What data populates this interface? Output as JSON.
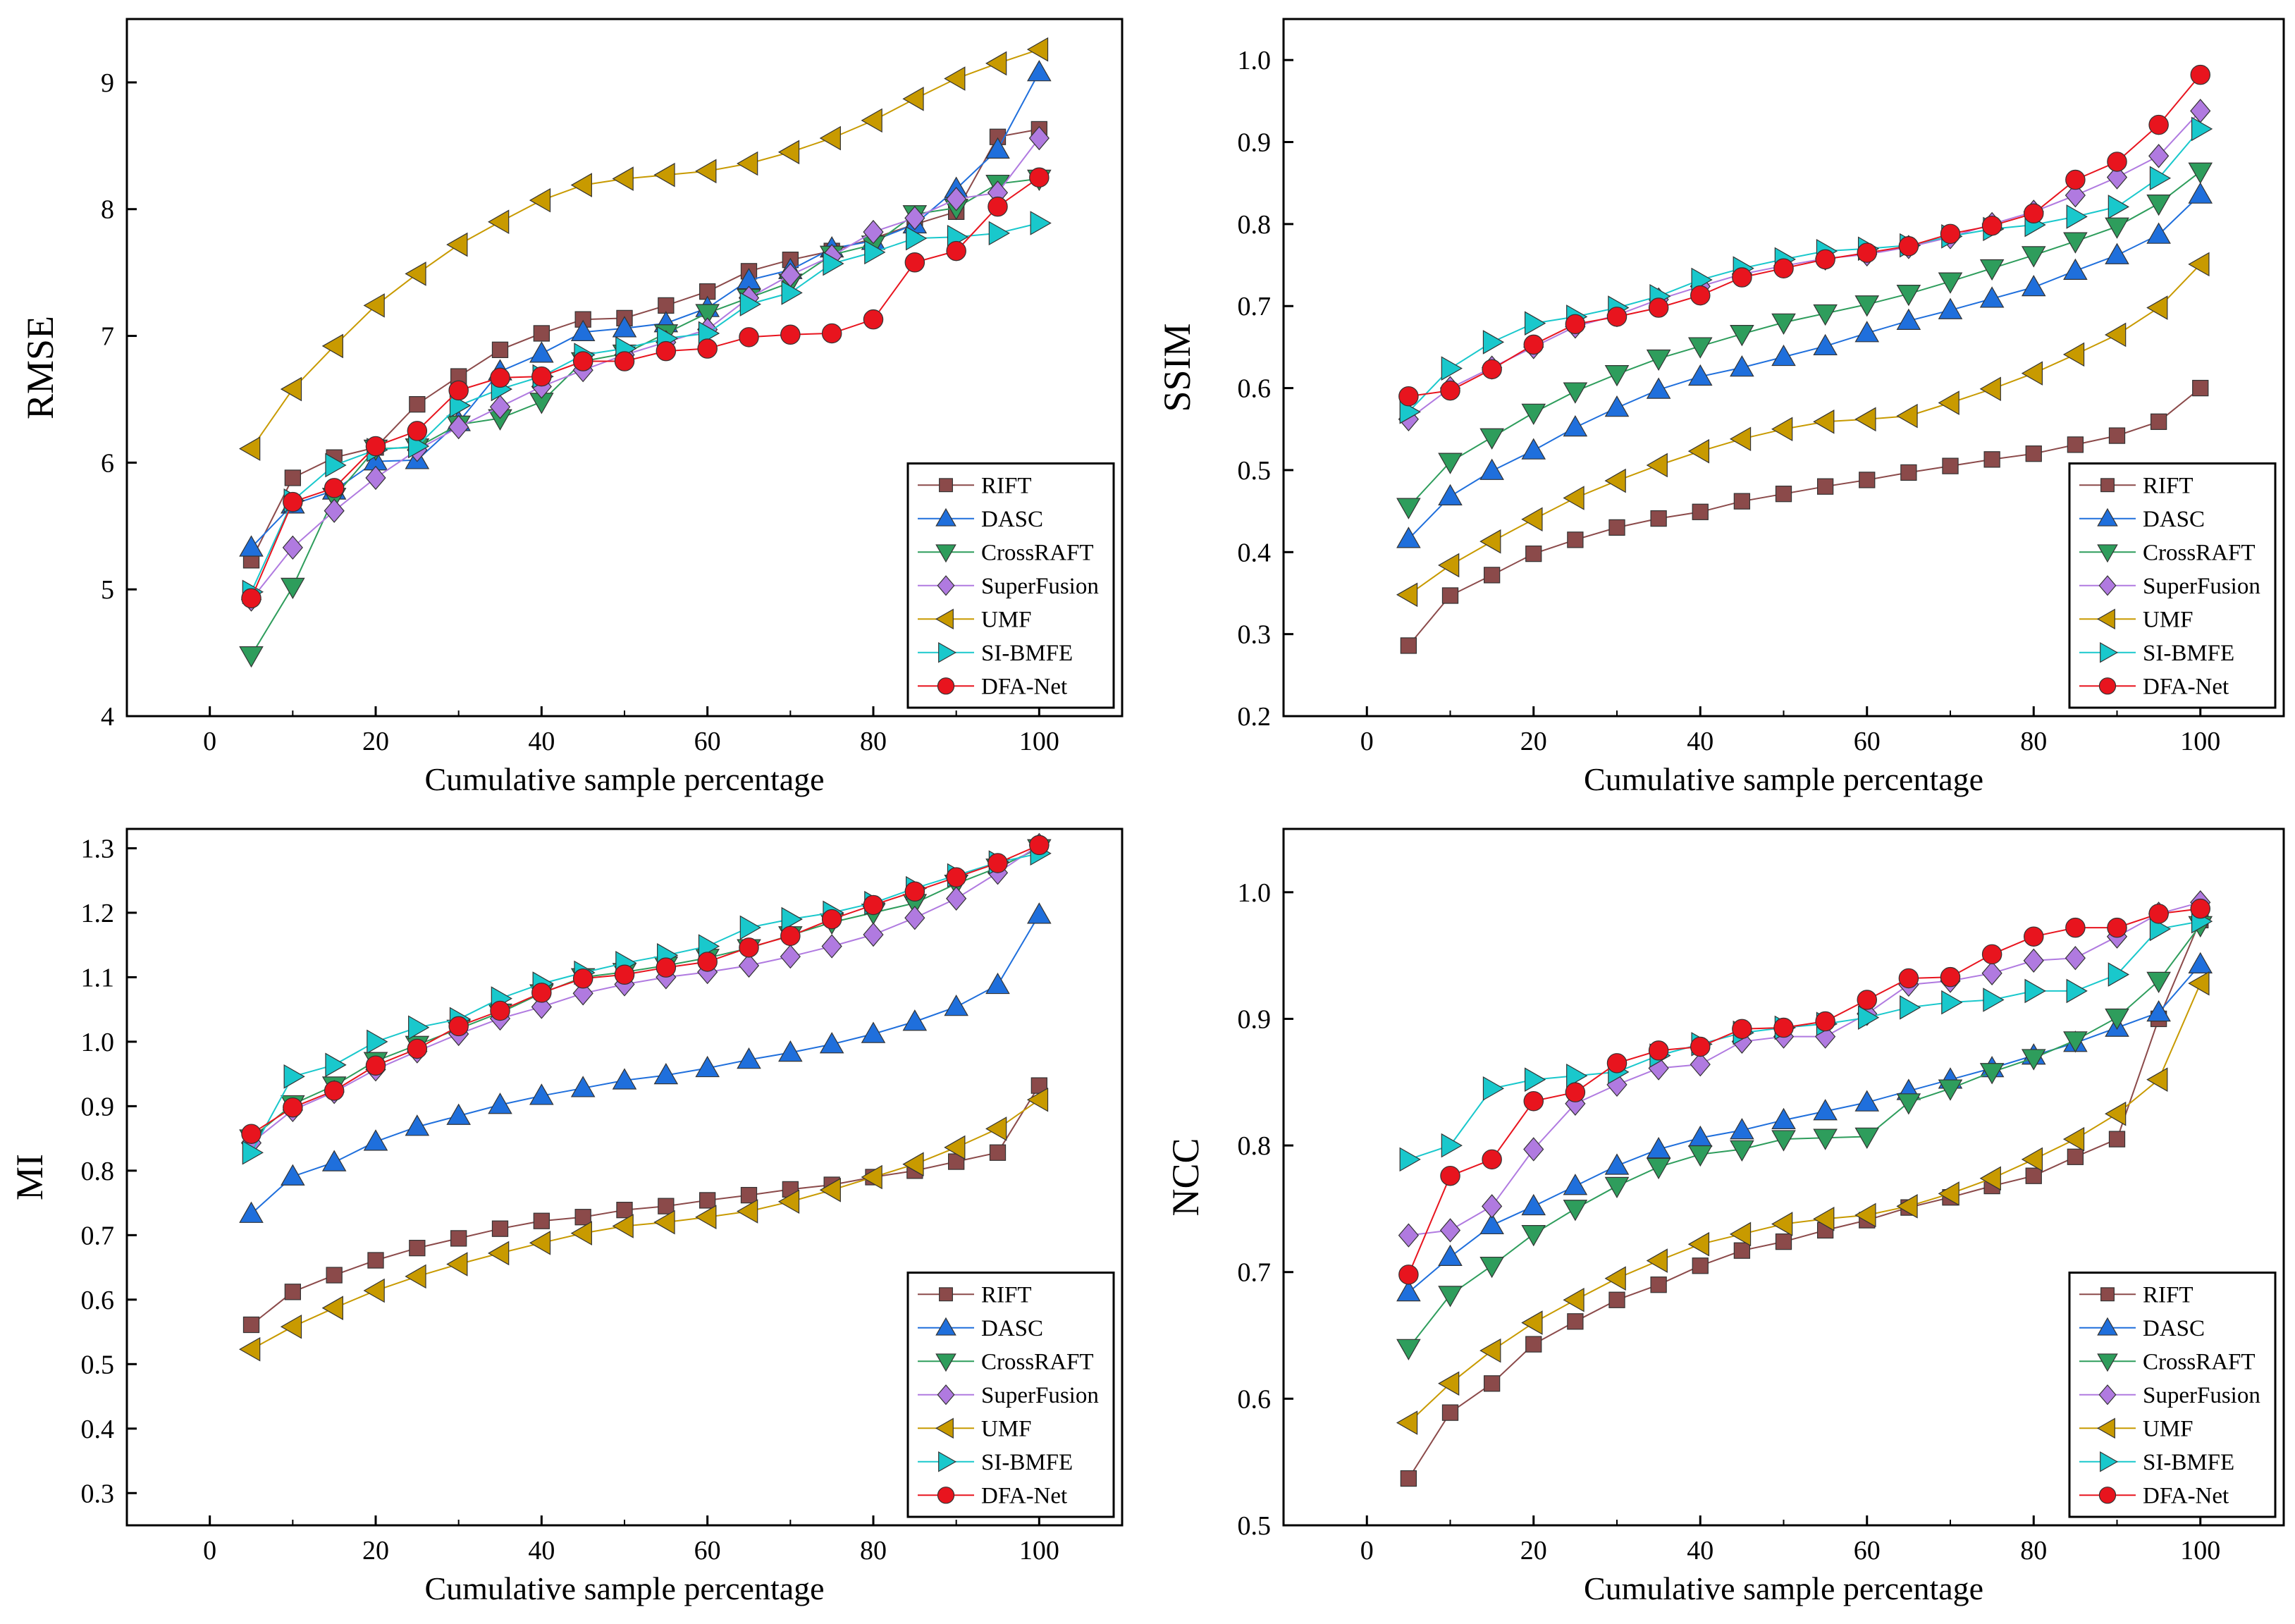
{
  "series_styles": [
    {
      "name": "RIFT",
      "color": "#8b4a4a",
      "marker": "square"
    },
    {
      "name": "DASC",
      "color": "#1f6fdc",
      "marker": "triangle-up"
    },
    {
      "name": "CrossRAFT",
      "color": "#2e9d5c",
      "marker": "triangle-down"
    },
    {
      "name": "SuperFusion",
      "color": "#b07ae0",
      "marker": "diamond"
    },
    {
      "name": "UMF",
      "color": "#c89a00",
      "marker": "triangle-left"
    },
    {
      "name": "SI-BMFE",
      "color": "#19c8cc",
      "marker": "triangle-right"
    },
    {
      "name": "DFA-Net",
      "color": "#e8141e",
      "marker": "circle"
    }
  ],
  "chart_data": [
    {
      "type": "line",
      "id": "rmse",
      "xlabel": "Cumulative sample percentage",
      "ylabel": "RMSE",
      "xlim": [
        -10,
        110
      ],
      "ylim": [
        4,
        9.5
      ],
      "xticks": [
        0,
        20,
        40,
        60,
        80,
        100
      ],
      "yticks": [
        4,
        5,
        6,
        7,
        8,
        9
      ],
      "ytick_labels": [
        "4",
        "5",
        "6",
        "7",
        "8",
        "9"
      ],
      "legend": "bottom-right",
      "x": [
        5,
        10,
        15,
        20,
        25,
        30,
        35,
        40,
        45,
        50,
        55,
        60,
        65,
        70,
        75,
        80,
        85,
        90,
        95,
        100
      ],
      "series": [
        {
          "name": "RIFT",
          "values": [
            5.23,
            5.88,
            6.04,
            6.12,
            6.46,
            6.68,
            6.89,
            7.02,
            7.13,
            7.14,
            7.24,
            7.35,
            7.51,
            7.6,
            7.67,
            7.77,
            7.88,
            7.98,
            8.57,
            8.63
          ]
        },
        {
          "name": "DASC",
          "values": [
            5.33,
            5.67,
            5.78,
            6.01,
            6.02,
            6.32,
            6.72,
            6.86,
            7.03,
            7.06,
            7.1,
            7.22,
            7.44,
            7.52,
            7.69,
            7.75,
            7.88,
            8.16,
            8.47,
            9.08
          ]
        },
        {
          "name": "CrossRAFT",
          "values": [
            4.48,
            5.02,
            5.73,
            6.11,
            6.12,
            6.3,
            6.35,
            6.48,
            6.8,
            6.86,
            7.02,
            7.18,
            7.3,
            7.42,
            7.64,
            7.72,
            7.96,
            8.01,
            8.2,
            8.24
          ]
        },
        {
          "name": "SuperFusion",
          "values": [
            4.92,
            5.33,
            5.62,
            5.88,
            6.1,
            6.28,
            6.44,
            6.6,
            6.73,
            6.85,
            6.95,
            7.05,
            7.3,
            7.48,
            7.63,
            7.82,
            7.93,
            8.08,
            8.13,
            8.56
          ]
        },
        {
          "name": "UMF",
          "values": [
            6.11,
            6.58,
            6.92,
            7.24,
            7.49,
            7.72,
            7.9,
            8.07,
            8.19,
            8.24,
            8.27,
            8.3,
            8.36,
            8.45,
            8.56,
            8.7,
            8.87,
            9.03,
            9.15,
            9.26
          ]
        },
        {
          "name": "SI-BMFE",
          "values": [
            4.98,
            5.7,
            5.98,
            6.1,
            6.13,
            6.45,
            6.58,
            6.68,
            6.85,
            6.9,
            6.98,
            7.02,
            7.25,
            7.34,
            7.57,
            7.66,
            7.77,
            7.78,
            7.81,
            7.89
          ]
        },
        {
          "name": "DFA-Net",
          "values": [
            4.93,
            5.69,
            5.8,
            6.13,
            6.25,
            6.57,
            6.67,
            6.68,
            6.8,
            6.8,
            6.88,
            6.9,
            6.99,
            7.01,
            7.02,
            7.13,
            7.58,
            7.67,
            8.02,
            8.25
          ]
        }
      ]
    },
    {
      "type": "line",
      "id": "ssim",
      "xlabel": "Cumulative sample percentage",
      "ylabel": "SSIM",
      "xlim": [
        -10,
        110
      ],
      "ylim": [
        0.2,
        1.05
      ],
      "xticks": [
        0,
        20,
        40,
        60,
        80,
        100
      ],
      "yticks": [
        0.2,
        0.3,
        0.4,
        0.5,
        0.6,
        0.7,
        0.8,
        0.9,
        1.0
      ],
      "ytick_labels": [
        "0.2",
        "0.3",
        "0.4",
        "0.5",
        "0.6",
        "0.7",
        "0.8",
        "0.9",
        "1.0"
      ],
      "legend": "bottom-right",
      "x": [
        5,
        10,
        15,
        20,
        25,
        30,
        35,
        40,
        45,
        50,
        55,
        60,
        65,
        70,
        75,
        80,
        85,
        90,
        95,
        100
      ],
      "series": [
        {
          "name": "RIFT",
          "values": [
            0.286,
            0.347,
            0.372,
            0.398,
            0.415,
            0.43,
            0.441,
            0.449,
            0.462,
            0.471,
            0.48,
            0.488,
            0.497,
            0.505,
            0.513,
            0.52,
            0.531,
            0.542,
            0.559,
            0.6
          ]
        },
        {
          "name": "DASC",
          "values": [
            0.416,
            0.468,
            0.499,
            0.524,
            0.552,
            0.576,
            0.598,
            0.614,
            0.625,
            0.638,
            0.651,
            0.667,
            0.682,
            0.695,
            0.709,
            0.723,
            0.743,
            0.762,
            0.787,
            0.836
          ]
        },
        {
          "name": "CrossRAFT",
          "values": [
            0.455,
            0.51,
            0.54,
            0.57,
            0.596,
            0.617,
            0.636,
            0.651,
            0.666,
            0.68,
            0.691,
            0.702,
            0.715,
            0.73,
            0.746,
            0.762,
            0.779,
            0.797,
            0.825,
            0.864
          ]
        },
        {
          "name": "SuperFusion",
          "values": [
            0.562,
            0.6,
            0.625,
            0.65,
            0.675,
            0.689,
            0.708,
            0.724,
            0.739,
            0.749,
            0.758,
            0.763,
            0.772,
            0.784,
            0.8,
            0.815,
            0.835,
            0.857,
            0.883,
            0.938
          ]
        },
        {
          "name": "UMF",
          "values": [
            0.348,
            0.384,
            0.413,
            0.44,
            0.466,
            0.487,
            0.506,
            0.523,
            0.538,
            0.55,
            0.559,
            0.562,
            0.566,
            0.582,
            0.599,
            0.618,
            0.641,
            0.665,
            0.698,
            0.751
          ]
        },
        {
          "name": "SI-BMFE",
          "values": [
            0.571,
            0.624,
            0.656,
            0.679,
            0.687,
            0.698,
            0.712,
            0.732,
            0.746,
            0.757,
            0.767,
            0.77,
            0.774,
            0.785,
            0.794,
            0.799,
            0.809,
            0.821,
            0.856,
            0.916
          ]
        },
        {
          "name": "DFA-Net",
          "values": [
            0.59,
            0.597,
            0.623,
            0.653,
            0.678,
            0.687,
            0.698,
            0.713,
            0.735,
            0.746,
            0.757,
            0.765,
            0.773,
            0.788,
            0.798,
            0.813,
            0.854,
            0.876,
            0.921,
            0.982
          ]
        }
      ]
    },
    {
      "type": "line",
      "id": "mi",
      "xlabel": "Cumulative sample percentage",
      "ylabel": "MI",
      "xlim": [
        -10,
        110
      ],
      "ylim": [
        0.25,
        1.33
      ],
      "xticks": [
        0,
        20,
        40,
        60,
        80,
        100
      ],
      "yticks": [
        0.3,
        0.4,
        0.5,
        0.6,
        0.7,
        0.8,
        0.9,
        1.0,
        1.1,
        1.2,
        1.3
      ],
      "ytick_labels": [
        "0.3",
        "0.4",
        "0.5",
        "0.6",
        "0.7",
        "0.8",
        "0.9",
        "1.0",
        "1.1",
        "1.2",
        "1.3"
      ],
      "legend": "bottom-right",
      "x": [
        5,
        10,
        15,
        20,
        25,
        30,
        35,
        40,
        45,
        50,
        55,
        60,
        65,
        70,
        75,
        80,
        85,
        90,
        95,
        100
      ],
      "series": [
        {
          "name": "RIFT",
          "values": [
            0.561,
            0.612,
            0.638,
            0.661,
            0.68,
            0.695,
            0.71,
            0.722,
            0.728,
            0.739,
            0.745,
            0.754,
            0.762,
            0.771,
            0.778,
            0.79,
            0.8,
            0.814,
            0.828,
            0.932
          ]
        },
        {
          "name": "DASC",
          "values": [
            0.733,
            0.791,
            0.813,
            0.845,
            0.868,
            0.885,
            0.902,
            0.916,
            0.928,
            0.94,
            0.948,
            0.959,
            0.972,
            0.983,
            0.996,
            1.012,
            1.031,
            1.054,
            1.088,
            1.197
          ]
        },
        {
          "name": "CrossRAFT",
          "values": [
            0.85,
            0.903,
            0.932,
            0.97,
            0.995,
            1.02,
            1.045,
            1.075,
            1.1,
            1.108,
            1.118,
            1.13,
            1.145,
            1.165,
            1.185,
            1.2,
            1.215,
            1.245,
            1.27,
            1.3
          ]
        },
        {
          "name": "SuperFusion",
          "values": [
            0.843,
            0.894,
            0.922,
            0.957,
            0.985,
            1.012,
            1.036,
            1.054,
            1.075,
            1.089,
            1.1,
            1.108,
            1.118,
            1.132,
            1.148,
            1.166,
            1.192,
            1.222,
            1.262,
            1.305
          ]
        },
        {
          "name": "UMF",
          "values": [
            0.523,
            0.558,
            0.587,
            0.614,
            0.636,
            0.655,
            0.672,
            0.688,
            0.703,
            0.714,
            0.72,
            0.728,
            0.737,
            0.752,
            0.77,
            0.79,
            0.81,
            0.836,
            0.865,
            0.91
          ]
        },
        {
          "name": "SI-BMFE",
          "values": [
            0.828,
            0.946,
            0.964,
            1.0,
            1.022,
            1.035,
            1.067,
            1.09,
            1.107,
            1.122,
            1.134,
            1.148,
            1.177,
            1.19,
            1.2,
            1.215,
            1.238,
            1.258,
            1.278,
            1.292
          ]
        },
        {
          "name": "DFA-Net",
          "values": [
            0.857,
            0.898,
            0.924,
            0.963,
            0.989,
            1.024,
            1.048,
            1.076,
            1.098,
            1.104,
            1.115,
            1.124,
            1.146,
            1.164,
            1.19,
            1.212,
            1.233,
            1.255,
            1.277,
            1.305
          ]
        }
      ]
    },
    {
      "type": "line",
      "id": "ncc",
      "xlabel": "Cumulative sample percentage",
      "ylabel": "NCC",
      "xlim": [
        -10,
        110
      ],
      "ylim": [
        0.5,
        1.05
      ],
      "xticks": [
        0,
        20,
        40,
        60,
        80,
        100
      ],
      "yticks": [
        0.5,
        0.6,
        0.7,
        0.8,
        0.9,
        1.0
      ],
      "ytick_labels": [
        "0.5",
        "0.6",
        "0.7",
        "0.8",
        "0.9",
        "1.0"
      ],
      "legend": "bottom-right",
      "x": [
        5,
        10,
        15,
        20,
        25,
        30,
        35,
        40,
        45,
        50,
        55,
        60,
        65,
        70,
        75,
        80,
        85,
        90,
        95,
        100
      ],
      "series": [
        {
          "name": "RIFT",
          "values": [
            0.537,
            0.589,
            0.612,
            0.643,
            0.661,
            0.678,
            0.69,
            0.705,
            0.717,
            0.724,
            0.733,
            0.741,
            0.751,
            0.759,
            0.768,
            0.776,
            0.791,
            0.805,
            0.9,
            0.978
          ]
        },
        {
          "name": "DASC",
          "values": [
            0.684,
            0.712,
            0.737,
            0.752,
            0.768,
            0.784,
            0.797,
            0.806,
            0.812,
            0.82,
            0.827,
            0.834,
            0.843,
            0.852,
            0.861,
            0.871,
            0.881,
            0.893,
            0.905,
            0.943
          ]
        },
        {
          "name": "CrossRAFT",
          "values": [
            0.64,
            0.682,
            0.705,
            0.73,
            0.75,
            0.768,
            0.783,
            0.793,
            0.797,
            0.805,
            0.806,
            0.807,
            0.834,
            0.845,
            0.858,
            0.869,
            0.883,
            0.901,
            0.93,
            0.974
          ]
        },
        {
          "name": "SuperFusion",
          "values": [
            0.729,
            0.733,
            0.752,
            0.797,
            0.833,
            0.848,
            0.861,
            0.864,
            0.882,
            0.886,
            0.886,
            0.904,
            0.927,
            0.93,
            0.936,
            0.946,
            0.948,
            0.965,
            0.983,
            0.992
          ]
        },
        {
          "name": "UMF",
          "values": [
            0.581,
            0.612,
            0.638,
            0.66,
            0.678,
            0.695,
            0.709,
            0.722,
            0.73,
            0.738,
            0.742,
            0.745,
            0.752,
            0.762,
            0.774,
            0.789,
            0.805,
            0.825,
            0.852,
            0.928
          ]
        },
        {
          "name": "SI-BMFE",
          "values": [
            0.789,
            0.8,
            0.845,
            0.852,
            0.855,
            0.858,
            0.871,
            0.88,
            0.889,
            0.893,
            0.896,
            0.901,
            0.909,
            0.913,
            0.915,
            0.922,
            0.922,
            0.935,
            0.971,
            0.977
          ]
        },
        {
          "name": "DFA-Net",
          "values": [
            0.698,
            0.776,
            0.789,
            0.835,
            0.842,
            0.865,
            0.875,
            0.878,
            0.892,
            0.893,
            0.898,
            0.915,
            0.932,
            0.933,
            0.951,
            0.965,
            0.972,
            0.972,
            0.983,
            0.987
          ]
        }
      ]
    }
  ]
}
